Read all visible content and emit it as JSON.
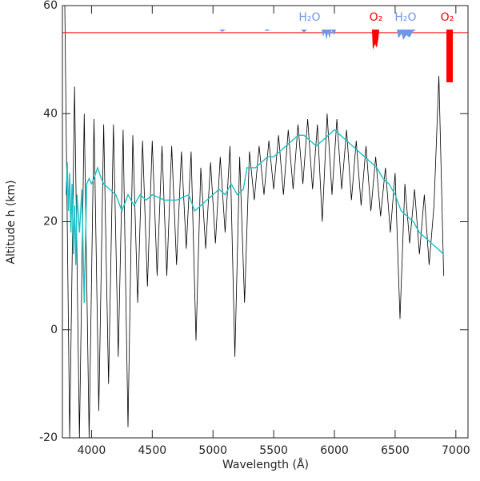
{
  "chart_data": {
    "type": "line",
    "x_label": "Wavelength (Å)",
    "y_label": "Altitude h (km)",
    "xlim": [
      3760,
      7100
    ],
    "ylim": [
      -20,
      60
    ],
    "xticks": [
      4000,
      4500,
      5000,
      5500,
      6000,
      6500,
      7000
    ],
    "yticks": [
      -20,
      0,
      20,
      40,
      60
    ],
    "reference_line": {
      "value": 55,
      "color": "#ff0000"
    },
    "annotations": [
      "H₂O",
      "O₂",
      "H₂O",
      "O₂"
    ],
    "series": [
      {
        "color": "#000000",
        "x": [
          3780,
          3820,
          3860,
          3900,
          3940,
          3980,
          4020,
          4060,
          4100,
          4140,
          4180,
          4220,
          4260,
          4300,
          4340,
          4380,
          4420,
          4460,
          4500,
          4540,
          4580,
          4620,
          4660,
          4700,
          4740,
          4780,
          4820,
          4860,
          4900,
          4940,
          4980,
          5020,
          5060,
          5100,
          5140,
          5180,
          5220,
          5260,
          5300,
          5340,
          5380,
          5420,
          5460,
          5500,
          5540,
          5580,
          5620,
          5660,
          5700,
          5740,
          5780,
          5820,
          5860,
          5900,
          5940,
          5980,
          6020,
          6060,
          6100,
          6140,
          6180,
          6220,
          6260,
          6300,
          6340,
          6380,
          6420,
          6460,
          6500,
          6540,
          6580,
          6620,
          6660,
          6700,
          6740,
          6780,
          6820,
          6860,
          6900
        ],
        "values": [
          60,
          -20,
          45,
          -20,
          40,
          -20,
          39,
          -15,
          38,
          -10,
          38,
          -5,
          37,
          -18,
          36,
          5,
          35,
          8,
          35,
          10,
          34,
          10,
          34,
          12,
          33,
          15,
          33,
          -2,
          30,
          15,
          31,
          16,
          32,
          18,
          34,
          -5,
          32,
          5,
          33,
          24,
          34,
          25,
          35,
          26,
          36,
          25,
          37,
          26,
          38,
          27,
          39,
          26,
          38,
          20,
          40,
          25,
          39,
          26,
          37,
          24,
          35,
          23,
          34,
          22,
          32,
          21,
          30,
          18,
          29,
          2,
          27,
          16,
          26,
          14,
          25,
          12,
          23,
          47,
          10
        ]
      },
      {
        "color": "#19c0c8",
        "x": [
          3790,
          3800,
          3810,
          3820,
          3830,
          3840,
          3850,
          3860,
          3870,
          3880,
          3900,
          3920,
          3940,
          3960,
          3980,
          4000,
          4020,
          4050,
          4080,
          4100,
          4150,
          4200,
          4250,
          4300,
          4350,
          4400,
          4450,
          4500,
          4600,
          4700,
          4800,
          4850,
          4900,
          4950,
          5000,
          5050,
          5100,
          5150,
          5200,
          5250,
          5280,
          5350,
          5400,
          5450,
          5500,
          5550,
          5600,
          5650,
          5700,
          5750,
          5800,
          5850,
          5900,
          5950,
          6000,
          6050,
          6100,
          6150,
          6200,
          6250,
          6300,
          6350,
          6400,
          6450,
          6500,
          6550,
          6600,
          6650,
          6700,
          6750,
          6800,
          6850,
          6900
        ],
        "values": [
          25,
          31,
          22,
          29,
          18,
          27,
          14,
          23,
          12,
          25,
          18,
          26,
          5,
          27,
          28,
          27,
          28,
          30,
          28,
          27,
          26,
          25,
          22,
          25,
          23,
          25,
          24,
          25,
          24,
          24,
          25,
          22,
          23,
          24,
          25,
          26,
          25,
          27,
          25,
          26,
          30,
          30,
          31,
          32,
          32,
          33,
          34,
          35,
          36,
          36,
          35,
          34,
          35,
          36,
          37,
          36,
          35,
          34,
          33,
          32,
          31,
          30,
          28,
          27,
          25,
          22,
          21,
          20,
          18,
          17,
          16,
          15,
          14
        ]
      }
    ]
  }
}
